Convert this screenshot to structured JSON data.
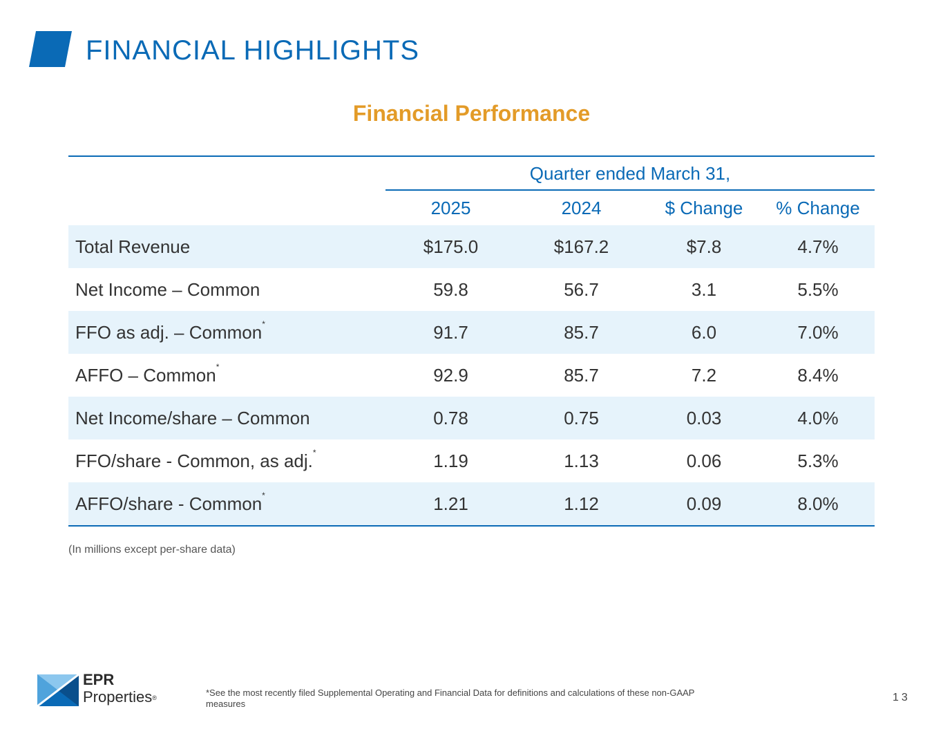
{
  "header": {
    "title": "FINANCIAL HIGHLIGHTS",
    "accent_color": "#0a6ab6"
  },
  "section": {
    "title": "Financial Performance",
    "color": "#e39b28"
  },
  "table": {
    "group_header": "Quarter ended March 31,",
    "columns": [
      "2025",
      "2024",
      "$ Change",
      "% Change"
    ],
    "rows": [
      {
        "label": "Total Revenue",
        "note": "",
        "values": [
          "$175.0",
          "$167.2",
          "$7.8",
          "4.7%"
        ]
      },
      {
        "label": "Net Income – Common",
        "note": "",
        "values": [
          "59.8",
          "56.7",
          "3.1",
          "5.5%"
        ]
      },
      {
        "label": "FFO as adj. – Common",
        "note": "*",
        "values": [
          "91.7",
          "85.7",
          "6.0",
          "7.0%"
        ]
      },
      {
        "label": "AFFO – Common",
        "note": "*",
        "values": [
          "92.9",
          "85.7",
          "7.2",
          "8.4%"
        ]
      },
      {
        "label": "Net Income/share – Common",
        "note": "",
        "values": [
          "0.78",
          "0.75",
          "0.03",
          "4.0%"
        ]
      },
      {
        "label": "FFO/share - Common, as adj.",
        "note": "*",
        "values": [
          "1.19",
          "1.13",
          "0.06",
          "5.3%"
        ]
      },
      {
        "label": "AFFO/share - Common",
        "note": "*",
        "values": [
          "1.21",
          "1.12",
          "0.09",
          "8.0%"
        ]
      }
    ]
  },
  "note": "(In millions except per-share data)",
  "footer": {
    "logo_line1": "EPR",
    "logo_line2": "Properties",
    "logo_reg": "®",
    "footnote": "*See the most recently filed Supplemental Operating and Financial Data for definitions and calculations of these non-GAAP measures",
    "page_number": "13"
  }
}
